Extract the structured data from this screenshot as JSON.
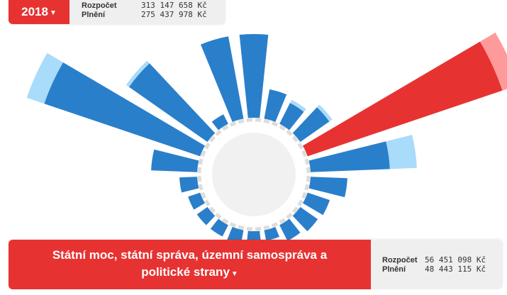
{
  "header": {
    "year": "2018",
    "budget_label": "Rozpočet",
    "budget_value": "313 147 658 Kč",
    "spent_label": "Plnění",
    "spent_value": "275 437 978 Kč"
  },
  "selection": {
    "category": "Státní moc, státní správa, územní samospráva a politické strany",
    "budget_label": "Rozpočet",
    "budget_value": "56 451 098 Kč",
    "spent_label": "Plnění",
    "spent_value": "48 443 115 Kč"
  },
  "colors": {
    "spent": "#2a7fca",
    "budget_remainder": "#a9dbfa",
    "selected_spent": "#e63332",
    "selected_remainder": "#ff9a9a",
    "ring": "#dddddd",
    "center": "#f1f1f1"
  },
  "chart_data": {
    "type": "radial-bar",
    "units": "relative",
    "values_note": "estimated relative magnitudes (budget vs. spent) per budget category",
    "series": [
      {
        "name": "Rozpočet",
        "values": [
          118,
          42,
          38,
          55,
          315,
          150,
          52,
          33,
          30,
          25,
          15,
          24,
          20,
          18,
          18,
          18,
          25,
          65,
          258,
          140,
          15,
          118
        ]
      },
      {
        "name": "Plnění",
        "values": [
          118,
          42,
          33,
          50,
          290,
          112,
          52,
          33,
          30,
          25,
          15,
          24,
          20,
          18,
          18,
          18,
          25,
          65,
          232,
          135,
          15,
          118
        ]
      }
    ],
    "selected_index": 4
  }
}
